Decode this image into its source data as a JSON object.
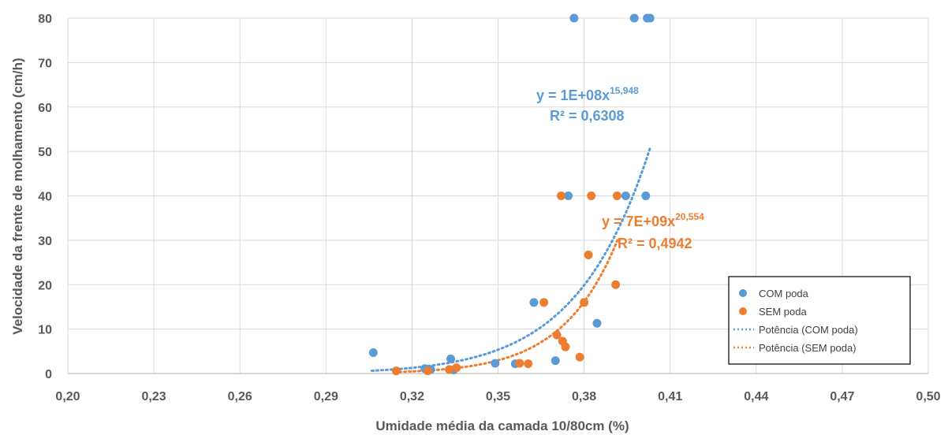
{
  "chart_data": {
    "type": "scatter",
    "xlabel": "Umidade média da camada 10/80cm (%)",
    "ylabel": "Velocidade da frente de molhamento (cm/h)",
    "xlim": [
      0.2,
      0.5
    ],
    "ylim": [
      0,
      80
    ],
    "x_ticks": [
      "0,20",
      "0,23",
      "0,26",
      "0,29",
      "0,32",
      "0,35",
      "0,38",
      "0,41",
      "0,44",
      "0,47",
      "0,50"
    ],
    "y_ticks": [
      "0",
      "10",
      "20",
      "30",
      "40",
      "50",
      "60",
      "70",
      "80"
    ],
    "grid": true,
    "legend_position": "bottom-right",
    "series": [
      {
        "name": "COM poda",
        "color": "#5B9BD5",
        "marker": "circle",
        "x": [
          0.3065,
          0.3245,
          0.3265,
          0.3335,
          0.3345,
          0.349,
          0.356,
          0.3625,
          0.37,
          0.3745,
          0.3765,
          0.3845,
          0.3945,
          0.3975,
          0.4015,
          0.402,
          0.403
        ],
        "y": [
          4.7,
          1.1,
          0.9,
          3.3,
          0.8,
          2.3,
          2.2,
          16,
          2.9,
          40,
          80,
          11.3,
          40,
          80,
          40,
          80,
          80
        ]
      },
      {
        "name": "SEM poda",
        "color": "#ED7D31",
        "marker": "circle",
        "x": [
          0.3145,
          0.3255,
          0.333,
          0.3355,
          0.3575,
          0.3605,
          0.366,
          0.3705,
          0.372,
          0.3725,
          0.3735,
          0.3785,
          0.38,
          0.3815,
          0.3825,
          0.391,
          0.3915
        ],
        "y": [
          0.6,
          0.6,
          0.9,
          1.3,
          2.3,
          2.2,
          16,
          8.7,
          40,
          7.3,
          6.0,
          3.7,
          16,
          26.7,
          40,
          20,
          40
        ]
      }
    ],
    "trendlines": [
      {
        "name": "Potência (COM poda)",
        "series": "COM poda",
        "type": "power",
        "coef": 100000000.0,
        "exponent": 15.948,
        "x_range": [
          0.306,
          0.403
        ],
        "color": "#5B9BD5",
        "equation_text": "y = 1E+08x",
        "equation_sup": "15,948",
        "r2_text": "R² = 0,6308"
      },
      {
        "name": "Potência (SEM poda)",
        "series": "SEM poda",
        "type": "power",
        "coef": 7000000000.0,
        "exponent": 20.554,
        "x_range": [
          0.314,
          0.392
        ],
        "color": "#ED7D31",
        "equation_text": "y = 7E+09x",
        "equation_sup": "20,554",
        "r2_text": "R² = 0,4942"
      }
    ]
  }
}
